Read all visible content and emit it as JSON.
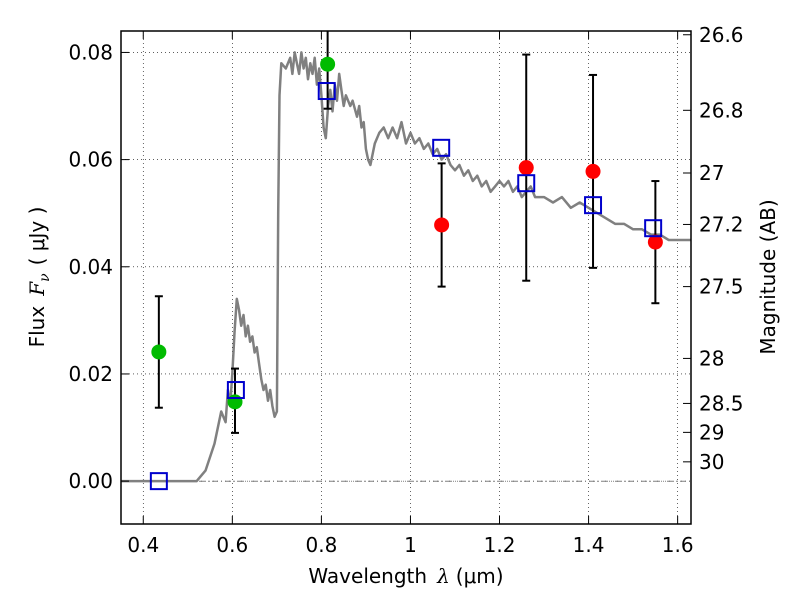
{
  "chart_data": {
    "type": "scatter",
    "title": "",
    "xlabel": {
      "prefix": "Wavelength",
      "symbol": "λ",
      "unit": "(μm)"
    },
    "ylabel": {
      "prefix": "Flux",
      "symbol": "F",
      "subscript": "ν",
      "unit": "( μJy )"
    },
    "y2label": "Magnitude (AB)",
    "xlim": [
      0.35,
      1.63
    ],
    "ylim": [
      -0.008,
      0.084
    ],
    "grid": true,
    "x_ticks": [
      0.4,
      0.6,
      0.8,
      1.0,
      1.2,
      1.4,
      1.6
    ],
    "x_tick_labels": [
      "0.4",
      "0.6",
      "0.8",
      "1",
      "1.2",
      "1.4",
      "1.6"
    ],
    "y_ticks": [
      0.0,
      0.02,
      0.04,
      0.06,
      0.08
    ],
    "y_tick_labels": [
      "0.00",
      "0.02",
      "0.04",
      "0.06",
      "0.08"
    ],
    "mag_ticks": [
      {
        "label": "26.6",
        "flux": 0.0833
      },
      {
        "label": "26.8",
        "flux": 0.0692
      },
      {
        "label": "27",
        "flux": 0.0575
      },
      {
        "label": "27.2",
        "flux": 0.0479
      },
      {
        "label": "27.5",
        "flux": 0.0363
      },
      {
        "label": "28",
        "flux": 0.0229
      },
      {
        "label": "28.5",
        "flux": 0.0145
      },
      {
        "label": "29",
        "flux": 0.0091
      },
      {
        "label": "30",
        "flux": 0.0036
      }
    ],
    "series": [
      {
        "type": "line",
        "color": "#808080",
        "points": [
          [
            0.35,
            0.0
          ],
          [
            0.52,
            0.0
          ],
          [
            0.54,
            0.002
          ],
          [
            0.56,
            0.007
          ],
          [
            0.575,
            0.013
          ],
          [
            0.585,
            0.011
          ],
          [
            0.59,
            0.017
          ],
          [
            0.595,
            0.014
          ],
          [
            0.6,
            0.02
          ],
          [
            0.605,
            0.028
          ],
          [
            0.61,
            0.034
          ],
          [
            0.615,
            0.032
          ],
          [
            0.62,
            0.029
          ],
          [
            0.625,
            0.031
          ],
          [
            0.63,
            0.027
          ],
          [
            0.635,
            0.029
          ],
          [
            0.64,
            0.026
          ],
          [
            0.645,
            0.027
          ],
          [
            0.65,
            0.024
          ],
          [
            0.655,
            0.025
          ],
          [
            0.66,
            0.022
          ],
          [
            0.665,
            0.019
          ],
          [
            0.67,
            0.017
          ],
          [
            0.675,
            0.018
          ],
          [
            0.68,
            0.015
          ],
          [
            0.685,
            0.017
          ],
          [
            0.69,
            0.014
          ],
          [
            0.695,
            0.012
          ],
          [
            0.7,
            0.013
          ],
          [
            0.703,
            0.05
          ],
          [
            0.706,
            0.072
          ],
          [
            0.71,
            0.078
          ],
          [
            0.72,
            0.077
          ],
          [
            0.73,
            0.079
          ],
          [
            0.735,
            0.076
          ],
          [
            0.74,
            0.08
          ],
          [
            0.745,
            0.078
          ],
          [
            0.75,
            0.076
          ],
          [
            0.755,
            0.08
          ],
          [
            0.76,
            0.077
          ],
          [
            0.765,
            0.079
          ],
          [
            0.77,
            0.075
          ],
          [
            0.775,
            0.078
          ],
          [
            0.78,
            0.076
          ],
          [
            0.785,
            0.079
          ],
          [
            0.79,
            0.074
          ],
          [
            0.795,
            0.077
          ],
          [
            0.8,
            0.072
          ],
          [
            0.805,
            0.066
          ],
          [
            0.81,
            0.064
          ],
          [
            0.815,
            0.07
          ],
          [
            0.82,
            0.073
          ],
          [
            0.825,
            0.069
          ],
          [
            0.83,
            0.074
          ],
          [
            0.835,
            0.071
          ],
          [
            0.84,
            0.076
          ],
          [
            0.845,
            0.073
          ],
          [
            0.85,
            0.07
          ],
          [
            0.855,
            0.072
          ],
          [
            0.86,
            0.071
          ],
          [
            0.865,
            0.07
          ],
          [
            0.87,
            0.071
          ],
          [
            0.88,
            0.068
          ],
          [
            0.885,
            0.07
          ],
          [
            0.89,
            0.066
          ],
          [
            0.895,
            0.067
          ],
          [
            0.9,
            0.062
          ],
          [
            0.905,
            0.06
          ],
          [
            0.91,
            0.059
          ],
          [
            0.92,
            0.063
          ],
          [
            0.93,
            0.065
          ],
          [
            0.94,
            0.066
          ],
          [
            0.95,
            0.064
          ],
          [
            0.96,
            0.066
          ],
          [
            0.97,
            0.064
          ],
          [
            0.98,
            0.067
          ],
          [
            0.99,
            0.063
          ],
          [
            1.0,
            0.065
          ],
          [
            1.01,
            0.063
          ],
          [
            1.02,
            0.064
          ],
          [
            1.03,
            0.062
          ],
          [
            1.04,
            0.063
          ],
          [
            1.05,
            0.061
          ],
          [
            1.06,
            0.062
          ],
          [
            1.07,
            0.06
          ],
          [
            1.08,
            0.061
          ],
          [
            1.09,
            0.059
          ],
          [
            1.1,
            0.058
          ],
          [
            1.11,
            0.059
          ],
          [
            1.12,
            0.057
          ],
          [
            1.13,
            0.058
          ],
          [
            1.14,
            0.056
          ],
          [
            1.15,
            0.057
          ],
          [
            1.16,
            0.055
          ],
          [
            1.17,
            0.056
          ],
          [
            1.18,
            0.054
          ],
          [
            1.19,
            0.055
          ],
          [
            1.2,
            0.056
          ],
          [
            1.21,
            0.055
          ],
          [
            1.22,
            0.056
          ],
          [
            1.23,
            0.054
          ],
          [
            1.24,
            0.055
          ],
          [
            1.25,
            0.053
          ],
          [
            1.26,
            0.054
          ],
          [
            1.27,
            0.055
          ],
          [
            1.28,
            0.053
          ],
          [
            1.3,
            0.053
          ],
          [
            1.32,
            0.052
          ],
          [
            1.34,
            0.053
          ],
          [
            1.36,
            0.051
          ],
          [
            1.38,
            0.052
          ],
          [
            1.4,
            0.051
          ],
          [
            1.42,
            0.05
          ],
          [
            1.44,
            0.049
          ],
          [
            1.46,
            0.048
          ],
          [
            1.48,
            0.048
          ],
          [
            1.5,
            0.047
          ],
          [
            1.52,
            0.047
          ],
          [
            1.54,
            0.046
          ],
          [
            1.56,
            0.046
          ],
          [
            1.58,
            0.045
          ],
          [
            1.6,
            0.045
          ],
          [
            1.63,
            0.045
          ]
        ]
      },
      {
        "type": "model-points",
        "marker": "square",
        "color": "#0000cc",
        "x": [
          0.435,
          0.608,
          0.812,
          1.069,
          1.26,
          1.41,
          1.545
        ],
        "y": [
          0.0,
          0.017,
          0.0728,
          0.0622,
          0.0556,
          0.0515,
          0.0472
        ]
      },
      {
        "type": "detections",
        "marker": "circle",
        "color": "#00bb00",
        "x": [
          0.435,
          0.606,
          0.814
        ],
        "y": [
          0.0241,
          0.0148,
          0.0778
        ],
        "yerr_low": [
          0.0104,
          0.0058,
          0.0083
        ],
        "yerr_high": [
          0.0104,
          0.0062,
          0.0083
        ]
      },
      {
        "type": "detections",
        "marker": "circle",
        "color": "#ff0000",
        "x": [
          1.07,
          1.26,
          1.41,
          1.55
        ],
        "y": [
          0.0478,
          0.0585,
          0.0578,
          0.0446
        ],
        "yerr_low": [
          0.0115,
          0.0211,
          0.018,
          0.0114
        ],
        "yerr_high": [
          0.0115,
          0.0211,
          0.018,
          0.0114
        ]
      }
    ]
  }
}
